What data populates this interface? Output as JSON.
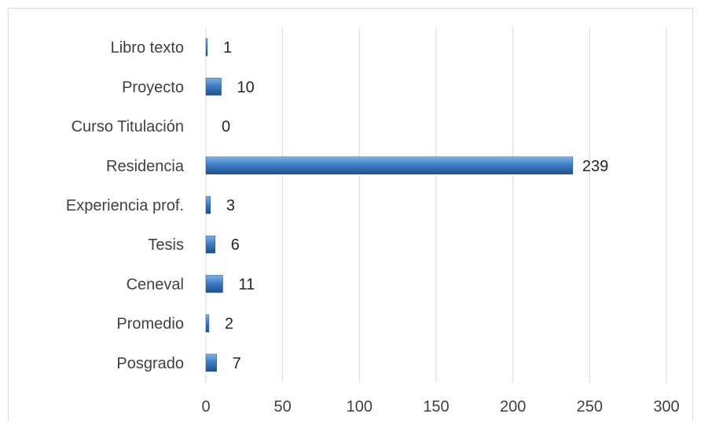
{
  "chart_data": {
    "type": "bar",
    "orientation": "horizontal",
    "categories": [
      "Libro texto",
      "Proyecto",
      "Curso Titulación",
      "Residencia",
      "Experiencia prof.",
      "Tesis",
      "Ceneval",
      "Promedio",
      "Posgrado"
    ],
    "values": [
      1,
      10,
      0,
      239,
      3,
      6,
      11,
      2,
      7
    ],
    "xlim": [
      0,
      300
    ],
    "xticks": [
      "0",
      "50",
      "100",
      "150",
      "200",
      "250",
      "300"
    ],
    "data_labels": [
      "1",
      "10",
      "0",
      "239",
      "3",
      "6",
      "11",
      "2",
      "7"
    ],
    "grid": "vertical",
    "legend": "none",
    "colors": {
      "bar_light": "#7fb1e3",
      "bar_main": "#3f7fc4",
      "bar_dark": "#1f4f8c",
      "grid": "#d9d9d9"
    }
  }
}
